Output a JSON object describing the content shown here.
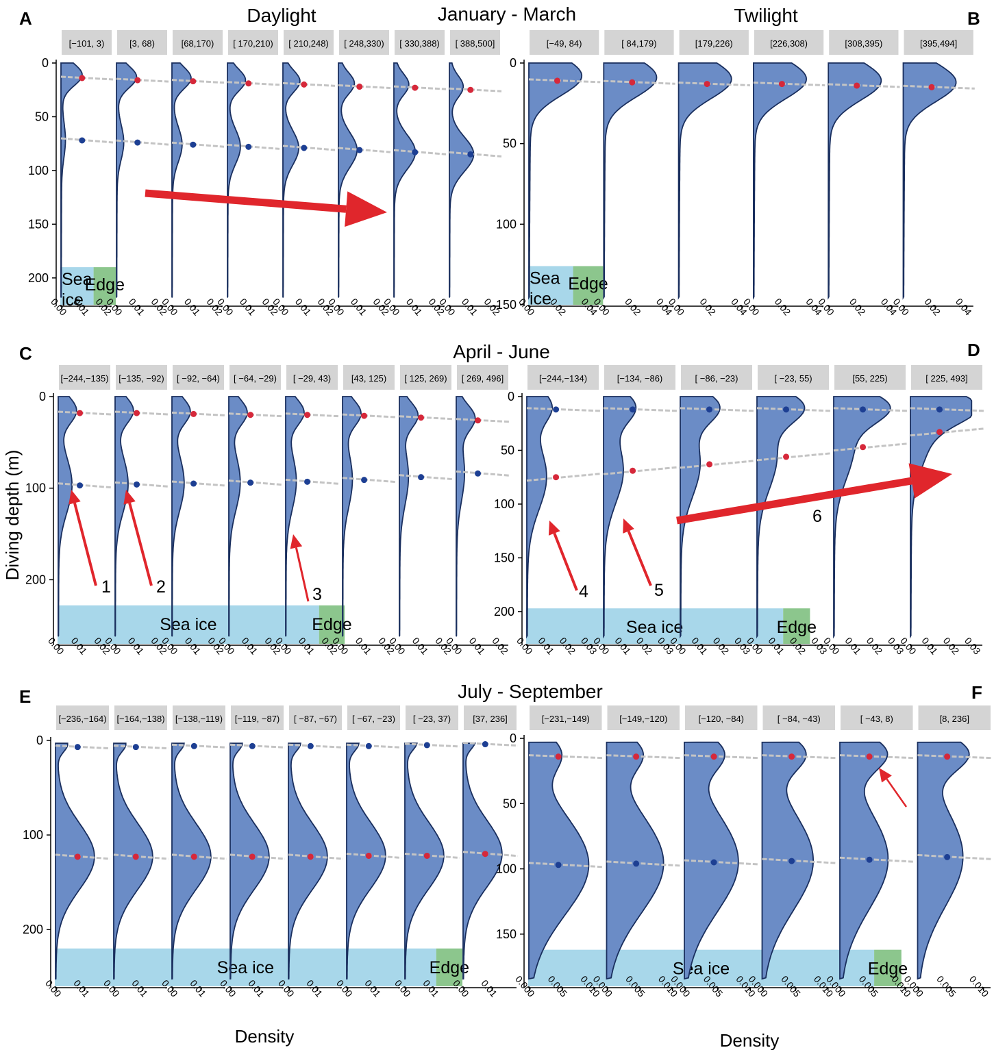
{
  "figure": {
    "y_axis_label": "Diving depth (m)",
    "x_axis_label": "Density",
    "rows": [
      {
        "title": "January - March"
      },
      {
        "title": "April - June"
      },
      {
        "title": "July - September"
      }
    ],
    "column_headings": {
      "left": "Daylight",
      "right": "Twilight"
    }
  },
  "colors": {
    "density_fill": "#6b8cc6",
    "density_line": "#1a2f5e",
    "deep_mode_dot": "#1d3f93",
    "shallow_mode_dot": "#d6283a",
    "trend_line": "#c4c4c4",
    "strip_bg": "#d4d4d4",
    "sea_ice": "#a8d7ea",
    "edge": "#8cc68d",
    "arrow": "#e0262c"
  },
  "chart_data": [
    {
      "panel": "A",
      "type": "area",
      "period": "January - March",
      "light": "Daylight",
      "facets": [
        "[−101,  3)",
        "[3, 68)",
        "[68,170)",
        "[ 170,210)",
        "[ 210,248)",
        "[ 248,330)",
        "[ 330,388)",
        "[ 388,500]"
      ],
      "ylim": [
        0,
        225
      ],
      "yticks": [
        0,
        50,
        100,
        150,
        200
      ],
      "xlim": [
        0,
        0.02
      ],
      "xticks": [
        "0.00",
        "0.01",
        "0.02"
      ],
      "shallow_mode_depth": [
        14,
        16,
        17,
        19,
        20,
        22,
        23,
        25
      ],
      "deep_mode_depth": [
        72,
        74,
        76,
        78,
        79,
        81,
        83,
        85
      ],
      "overlay": [
        {
          "label": "Sea\nice",
          "from_facet": 0,
          "to_facet": 0.6
        },
        {
          "label": "Edge",
          "from_facet": 0.6,
          "to_facet": 1.0
        }
      ],
      "arrows": [
        {
          "label": "",
          "direction": "rising"
        }
      ]
    },
    {
      "panel": "B",
      "type": "area",
      "period": "January - March",
      "light": "Twilight",
      "facets": [
        "[−49, 84)",
        "[ 84,179)",
        "[179,226)",
        "[226,308)",
        "[308,395)",
        "[395,494]"
      ],
      "ylim": [
        0,
        150
      ],
      "yticks": [
        0,
        50,
        100,
        150
      ],
      "xlim": [
        0,
        0.05
      ],
      "xticks": [
        "0.00",
        "0.02",
        "0.04"
      ],
      "shallow_mode_depth": [
        11,
        12,
        13,
        13,
        14,
        15
      ],
      "deep_mode_depth": [],
      "overlay": [
        {
          "label": "Sea\nice",
          "from_facet": 0,
          "to_facet": 0.6
        },
        {
          "label": "Edge",
          "from_facet": 0.6,
          "to_facet": 1.0
        }
      ],
      "arrows": []
    },
    {
      "panel": "C",
      "type": "area",
      "period": "April - June",
      "light": "Daylight",
      "facets": [
        "[−244,−135)",
        "[−135, −92)",
        "[ −92, −64)",
        "[ −64, −29)",
        "[ −29,  43)",
        "[43, 125)",
        "[ 125, 269)",
        "[ 269, 496]"
      ],
      "ylim": [
        0,
        270
      ],
      "yticks": [
        0,
        100,
        200
      ],
      "xlim": [
        0,
        0.02
      ],
      "xticks": [
        "0.00",
        "0.01",
        "0.02"
      ],
      "shallow_mode_depth": [
        18,
        18,
        19,
        20,
        20,
        21,
        23,
        26
      ],
      "deep_mode_depth": [
        97,
        96,
        95,
        94,
        93,
        91,
        88,
        84
      ],
      "overlay": [
        {
          "label": "Sea ice",
          "from_facet": 0,
          "to_facet": 4.6
        },
        {
          "label": "Edge",
          "from_facet": 4.6,
          "to_facet": 5.05
        }
      ],
      "arrows": [
        {
          "label": "1"
        },
        {
          "label": "2"
        },
        {
          "label": "3"
        }
      ]
    },
    {
      "panel": "D",
      "type": "area",
      "period": "April - June",
      "light": "Twilight",
      "facets": [
        "[−244,−134)",
        "[−134, −86)",
        "[ −86, −23)",
        "[ −23,  55)",
        "[55, 225)",
        "[ 225, 493]"
      ],
      "ylim": [
        0,
        230
      ],
      "yticks": [
        0,
        50,
        100,
        150,
        200
      ],
      "xlim": [
        0,
        0.03
      ],
      "xticks": [
        "0.00",
        "0.01",
        "0.02",
        "0.03"
      ],
      "shallow_mode_depth": [
        12,
        12,
        12,
        12,
        12,
        12
      ],
      "deep_mode_depth": [
        75,
        69,
        63,
        56,
        47,
        33
      ],
      "overlay": [
        {
          "label": "Sea ice",
          "from_facet": 0,
          "to_facet": 3.35
        },
        {
          "label": "Edge",
          "from_facet": 3.35,
          "to_facet": 3.7
        }
      ],
      "arrows": [
        {
          "label": "4"
        },
        {
          "label": "5"
        },
        {
          "label": "6"
        }
      ]
    },
    {
      "panel": "E",
      "type": "area",
      "period": "July - September",
      "light": "Daylight",
      "facets": [
        "[−236,−164)",
        "[−164,−138)",
        "[−138,−119)",
        "[−119, −87)",
        "[ −87, −67)",
        "[ −67, −23)",
        "[ −23,  37)",
        "[37, 236]"
      ],
      "ylim": [
        0,
        260
      ],
      "yticks": [
        0,
        100,
        200
      ],
      "xlim": [
        0,
        0.015
      ],
      "xticks": [
        "0.00",
        "0.01"
      ],
      "shallow_mode_depth": [
        7,
        7,
        6,
        6,
        6,
        6,
        5,
        4
      ],
      "deep_mode_depth": [
        123,
        123,
        123,
        123,
        123,
        122,
        122,
        120
      ],
      "overlay": [
        {
          "label": "Sea ice",
          "from_facet": 0,
          "to_facet": 6.55
        },
        {
          "label": "Edge",
          "from_facet": 6.55,
          "to_facet": 7.0
        }
      ],
      "arrows": []
    },
    {
      "panel": "F",
      "type": "area",
      "period": "July - September",
      "light": "Twilight",
      "facets": [
        "[−231,−149)",
        "[−149,−120)",
        "[−120, −84)",
        "[ −84, −43)",
        "[ −43,   8)",
        "[8, 236]"
      ],
      "ylim": [
        0,
        190
      ],
      "yticks": [
        0,
        50,
        100,
        150
      ],
      "xlim": [
        0,
        0.012
      ],
      "xticks": [
        "0.000",
        "0.005",
        "0.010"
      ],
      "shallow_mode_depth": [
        14,
        14,
        14,
        14,
        14,
        14
      ],
      "deep_mode_depth": [
        97,
        96,
        95,
        94,
        93,
        91
      ],
      "overlay": [
        {
          "label": "Sea ice",
          "from_facet": 0,
          "to_facet": 4.45
        },
        {
          "label": "Edge",
          "from_facet": 4.45,
          "to_facet": 4.8
        }
      ],
      "arrows": [
        {
          "label": ""
        }
      ]
    }
  ]
}
